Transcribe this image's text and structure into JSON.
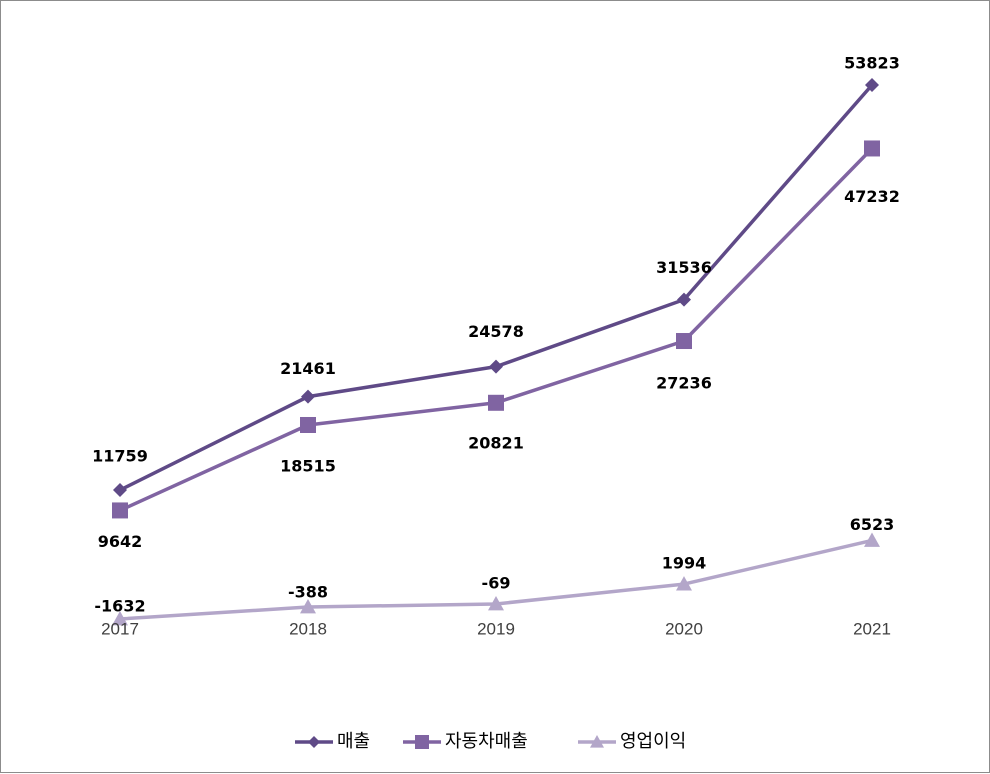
{
  "chart_data": {
    "type": "line",
    "categories": [
      "2017",
      "2018",
      "2019",
      "2020",
      "2021"
    ],
    "series": [
      {
        "name": "매출",
        "values": [
          11759,
          21461,
          24578,
          31536,
          53823
        ],
        "color": "#5f4a87",
        "marker": "diamond"
      },
      {
        "name": "자동차매출",
        "values": [
          9642,
          18515,
          20821,
          27236,
          47232
        ],
        "color": "#8064a2",
        "marker": "square"
      },
      {
        "name": "영업이익",
        "values": [
          -1632,
          -388,
          -69,
          1994,
          6523
        ],
        "color": "#b3a6c9",
        "marker": "triangle"
      }
    ],
    "ylim": [
      -1632,
      53823
    ],
    "grid": false,
    "legend_position": "bottom-center",
    "title": "",
    "xlabel": "",
    "ylabel": ""
  }
}
